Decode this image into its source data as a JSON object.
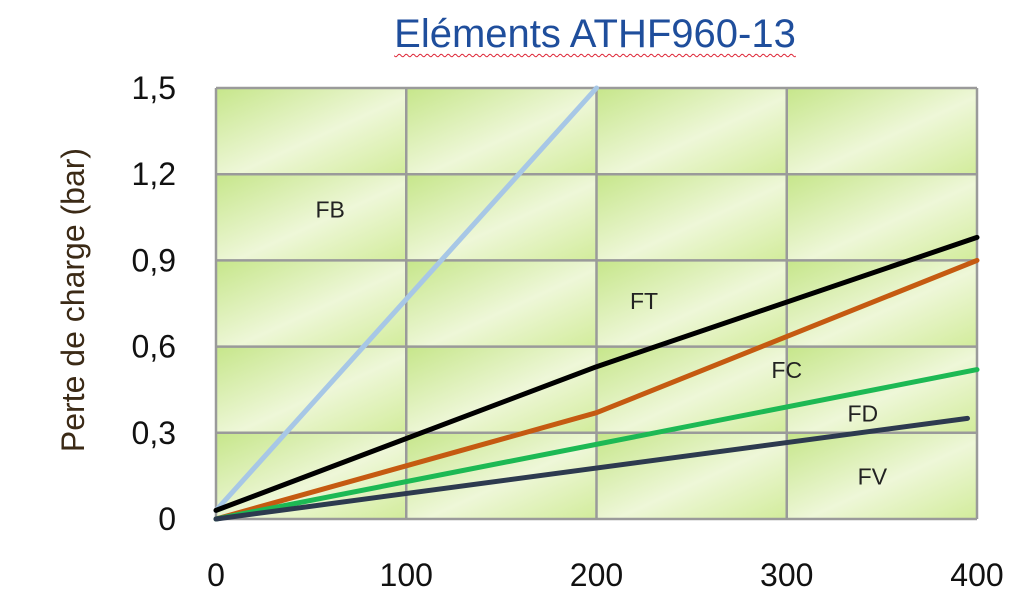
{
  "chart_data": {
    "type": "line",
    "title": "Eléments ATHF960-13",
    "xlabel": "",
    "ylabel": "Perte de charge (bar)",
    "xlim": [
      0,
      400
    ],
    "ylim": [
      0,
      1.5
    ],
    "x_ticks": [
      "0",
      "100",
      "200",
      "300",
      "400"
    ],
    "y_ticks": [
      "0",
      "0,3",
      "0,6",
      "0,9",
      "1,2",
      "1,5"
    ],
    "grid": true,
    "series": [
      {
        "name": "FB",
        "color": "#a7c7e6",
        "points": [
          [
            0,
            0.03
          ],
          [
            200,
            1.5
          ]
        ]
      },
      {
        "name": "FT",
        "color": "#000000",
        "points": [
          [
            0,
            0.03
          ],
          [
            200,
            0.53
          ],
          [
            400,
            0.98
          ]
        ]
      },
      {
        "name": "FC",
        "color": "#c55a11",
        "points": [
          [
            0,
            0.0
          ],
          [
            200,
            0.37
          ],
          [
            400,
            0.9
          ]
        ]
      },
      {
        "name": "FD",
        "color": "#1db954",
        "points": [
          [
            0,
            0.0
          ],
          [
            400,
            0.52
          ]
        ]
      },
      {
        "name": "FV",
        "color": "#2d3a4f",
        "points": [
          [
            0,
            0.0
          ],
          [
            395,
            0.35
          ]
        ]
      }
    ],
    "series_labels": [
      {
        "name": "FB",
        "x": 60,
        "y": 1.05
      },
      {
        "name": "FT",
        "x": 225,
        "y": 0.73
      },
      {
        "name": "FC",
        "x": 300,
        "y": 0.49
      },
      {
        "name": "FD",
        "x": 340,
        "y": 0.34
      },
      {
        "name": "FV",
        "x": 345,
        "y": 0.12
      }
    ]
  }
}
